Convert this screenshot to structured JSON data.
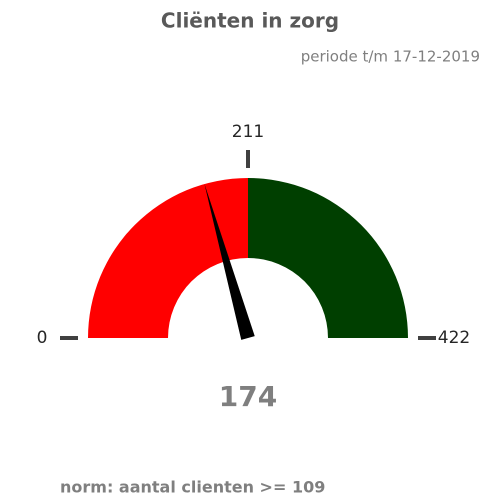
{
  "chart_data": {
    "type": "gauge",
    "title": "Cliënten in zorg",
    "subtitle": "periode t/m 17-12-2019",
    "value": 174,
    "ylim": [
      0,
      422
    ],
    "yticks": [
      0,
      211,
      422
    ],
    "bands": [
      {
        "from": 0,
        "to": 211,
        "color": "#ff0000"
      },
      {
        "from": 211,
        "to": 422,
        "color": "#003f00"
      }
    ],
    "needle_color": "#000000",
    "footnote": "norm: aantal clienten >= 109"
  }
}
